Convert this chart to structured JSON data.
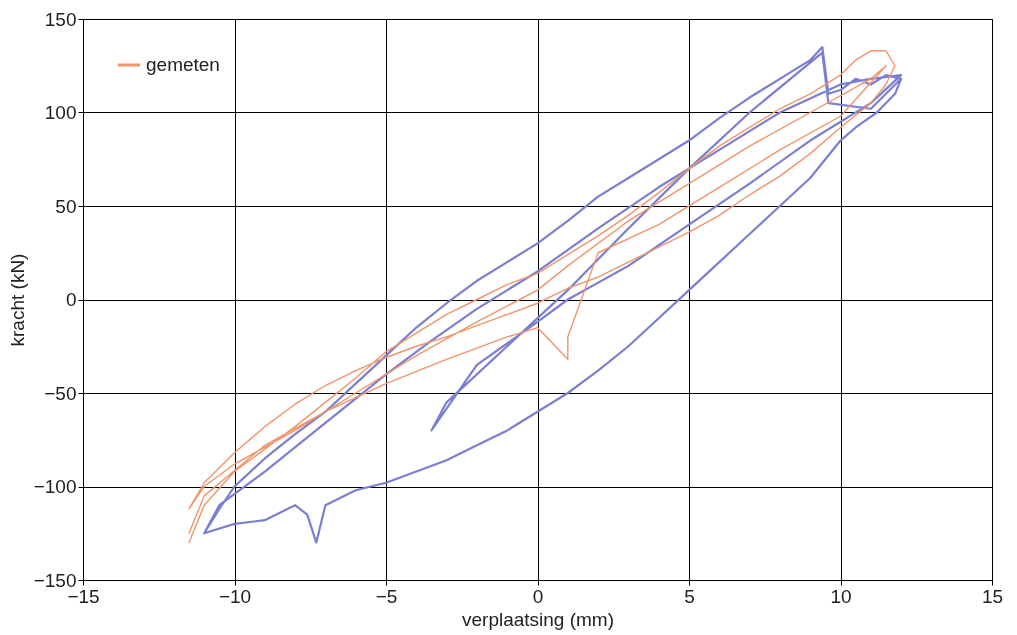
{
  "chart_data": {
    "type": "line",
    "xlabel": "verplaatsing (mm)",
    "ylabel": "kracht (kN)",
    "xlim": [
      -15,
      15
    ],
    "ylim": [
      -150,
      150
    ],
    "xticks": [
      -15,
      -10,
      -5,
      0,
      5,
      10,
      15
    ],
    "yticks": [
      -150,
      -100,
      -50,
      0,
      50,
      100,
      150
    ],
    "grid": true,
    "legend": "top left",
    "line_style": "solid",
    "series": [
      {
        "color": "#7b7fd0",
        "x": [
          -11,
          -10.5,
          -10,
          -9,
          -8,
          -7,
          -6,
          -5,
          -4,
          -3,
          -2,
          -1,
          0,
          1,
          2,
          3,
          4,
          5,
          6,
          7,
          8,
          9,
          9.4,
          9.6,
          10,
          10.5,
          11,
          11.5,
          12,
          11.8,
          11.2,
          10.5,
          10,
          9.5,
          9,
          8,
          7,
          6,
          5,
          4,
          3,
          2,
          1,
          0,
          -1,
          -2,
          -3,
          -4,
          -5,
          -6,
          -7,
          -7.3,
          -7.6,
          -8,
          -9,
          -10,
          -11,
          -10.5,
          -9,
          -7,
          -5,
          -3.5,
          -2,
          0,
          2,
          4,
          6,
          8,
          10,
          11,
          12,
          11,
          9,
          7,
          5,
          3,
          1,
          0,
          -2,
          -3.5,
          -3,
          -1,
          1,
          3,
          5,
          7,
          9.4,
          9.6,
          11,
          12
        ],
        "values": [
          -125,
          -112,
          -100,
          -85,
          -72,
          -60,
          -45,
          -30,
          -15,
          -2,
          10,
          20,
          30,
          42,
          55,
          65,
          75,
          85,
          97,
          108,
          118,
          128,
          135,
          110,
          112,
          118,
          115,
          120,
          118,
          110,
          100,
          92,
          85,
          75,
          65,
          50,
          35,
          20,
          5,
          -10,
          -25,
          -38,
          -50,
          -60,
          -70,
          -78,
          -86,
          -92,
          -98,
          -102,
          -110,
          -130,
          -115,
          -110,
          -118,
          -120,
          -125,
          -110,
          -92,
          -66,
          -40,
          -22,
          -5,
          15,
          38,
          60,
          80,
          100,
          115,
          118,
          120,
          105,
          85,
          62,
          40,
          18,
          0,
          -12,
          -35,
          -70,
          -55,
          -25,
          5,
          38,
          70,
          100,
          132,
          105,
          102,
          118
        ]
      },
      {
        "name": "gemeten",
        "color": "#f0956c",
        "x": [
          -11.5,
          -11,
          -10,
          -9,
          -8,
          -7,
          -6,
          -5,
          -4,
          -3,
          -2,
          -1,
          0,
          1,
          2,
          3,
          4,
          5,
          6,
          7,
          8,
          9,
          10,
          10.5,
          11,
          11.5,
          11.8,
          11.5,
          11,
          10,
          9,
          8,
          7,
          6,
          5,
          4,
          3,
          2,
          1,
          0,
          -1,
          -2,
          -3,
          -4,
          -5,
          -6,
          -7,
          -8,
          -9,
          -10,
          -11,
          -11.5,
          -11,
          -10,
          -8,
          -6,
          -4,
          -2,
          0,
          1,
          2,
          3,
          5,
          7,
          9,
          11,
          11.5,
          10,
          8,
          6,
          4,
          2,
          1,
          1,
          0,
          -1,
          -3,
          -5,
          -7,
          -9,
          -11,
          -11.5
        ],
        "values": [
          -130,
          -110,
          -92,
          -80,
          -68,
          -55,
          -42,
          -28,
          -18,
          -8,
          0,
          8,
          14,
          24,
          34,
          45,
          57,
          70,
          82,
          92,
          102,
          110,
          120,
          128,
          133,
          133,
          125,
          115,
          105,
          92,
          78,
          66,
          56,
          45,
          36,
          28,
          20,
          12,
          6,
          -2,
          -8,
          -14,
          -20,
          -25,
          -31,
          -38,
          -46,
          -56,
          -68,
          -82,
          -98,
          -112,
          -100,
          -88,
          -70,
          -50,
          -30,
          -12,
          5,
          18,
          30,
          42,
          62,
          82,
          100,
          118,
          125,
          98,
          80,
          60,
          40,
          25,
          -20,
          -32,
          -15,
          -20,
          -32,
          -45,
          -60,
          -78,
          -105,
          -125
        ]
      }
    ]
  }
}
